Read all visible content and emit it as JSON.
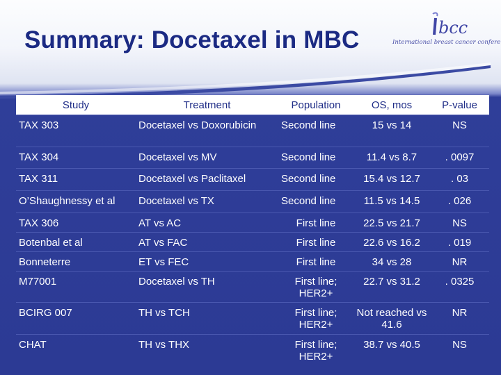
{
  "title": "Summary: Docetaxel in MBC",
  "logo": {
    "mark": "ibcc",
    "text": "International breast cancer conference"
  },
  "colors": {
    "title": "#1b2a83",
    "background": "#2c3a94",
    "header_bg": "#ffffff",
    "header_text": "#1f2d87",
    "body_text": "#ffffff"
  },
  "table": {
    "headers": [
      "Study",
      "Treatment",
      "Population",
      "OS, mos",
      "P-value"
    ],
    "rows": [
      [
        "TAX 303",
        "Docetaxel vs Doxorubicin",
        "Second line",
        "15 vs 14",
        "NS"
      ],
      [
        "TAX 304",
        "Docetaxel  vs MV",
        "Second line",
        "11.4 vs 8.7",
        ". 0097"
      ],
      [
        "TAX 311",
        "Docetaxel vs Paclitaxel",
        "Second line",
        "15.4 vs 12.7",
        ". 03"
      ],
      [
        "O’Shaughnessy et al",
        "Docetaxel vs TX",
        "Second line",
        "11.5 vs 14.5",
        ". 026"
      ],
      [
        "TAX 306",
        "AT vs AC",
        "First line",
        "22.5 vs 21.7",
        "NS"
      ],
      [
        "Botenbal et al",
        "AT vs FAC",
        "First line",
        "22.6 vs 16.2",
        ". 019"
      ],
      [
        "Bonneterre",
        "ET vs FEC",
        "First line",
        "34 vs 28",
        "NR"
      ],
      [
        "M77001",
        "Docetaxel vs TH",
        "First line; HER2+",
        "22.7 vs 31.2",
        ". 0325"
      ],
      [
        "BCIRG 007",
        "TH vs TCH",
        "First line; HER2+",
        "Not reached vs 41.6",
        "NR"
      ],
      [
        "CHAT",
        "TH vs THX",
        "First line; HER2+",
        "38.7 vs 40.5",
        "NS"
      ]
    ]
  }
}
